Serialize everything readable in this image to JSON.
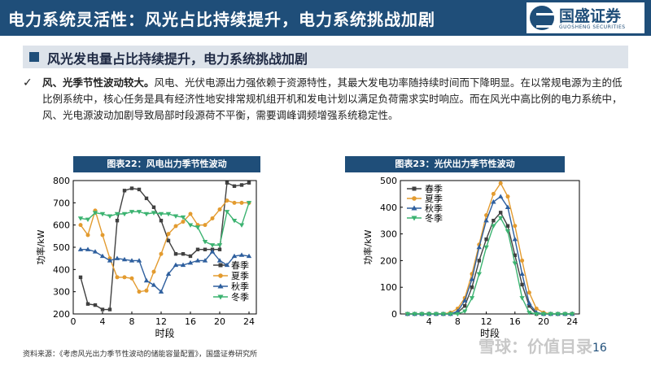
{
  "header": {
    "title": "电力系统灵活性：风光占比持续提升，电力系统挑战加剧",
    "logo_cn": "国盛证券",
    "logo_en": "GUOSHENG SECURITIES"
  },
  "subheading": "风光发电量占比持续提升，电力系统挑战加剧",
  "bullet": {
    "lead": "风、光季节性波动较大。",
    "text": "风电、光伏电源出力强依赖于资源特性，其最大发电功率随持续时间而下降明显。在以常规电源为主的低比例系统中，核心任务是具有经济性地安排常规机组开机和发电计划以满足负荷需求实时响应。而在风光中高比例的电力系统中，风、光电源波动加剧导致局部时段源荷不平衡，需要调峰调频增强系统稳定性。"
  },
  "chart_data": [
    {
      "caption": "图表22：风电出力季节性波动",
      "type": "line",
      "xlabel": "时段",
      "ylabel": "功率/kW",
      "xlim": [
        0,
        25
      ],
      "ylim": [
        200,
        800
      ],
      "xticks": [
        0,
        4,
        8,
        12,
        16,
        20,
        24
      ],
      "yticks": [
        200,
        300,
        400,
        500,
        600,
        700,
        800
      ],
      "legend_position": "bottom-right",
      "x": [
        1,
        2,
        3,
        4,
        5,
        6,
        7,
        8,
        9,
        10,
        11,
        12,
        13,
        14,
        15,
        16,
        17,
        18,
        19,
        20,
        21,
        22,
        23,
        24
      ],
      "series": [
        {
          "name": "春季",
          "marker": "square",
          "color": "#404040",
          "values": [
            365,
            245,
            240,
            220,
            220,
            620,
            755,
            765,
            760,
            720,
            680,
            620,
            530,
            470,
            470,
            460,
            490,
            490,
            490,
            490,
            790,
            775,
            780,
            790
          ]
        },
        {
          "name": "夏季",
          "marker": "circle",
          "color": "#e39b2f",
          "values": [
            600,
            555,
            665,
            555,
            450,
            365,
            365,
            360,
            300,
            305,
            390,
            470,
            560,
            595,
            615,
            650,
            600,
            600,
            630,
            670,
            710,
            700,
            700,
            700
          ]
        },
        {
          "name": "秋季",
          "marker": "triangle",
          "color": "#2e5f9e",
          "values": [
            490,
            490,
            480,
            460,
            440,
            450,
            445,
            440,
            440,
            350,
            330,
            300,
            380,
            420,
            420,
            430,
            440,
            440,
            480,
            440,
            420,
            460,
            465,
            460
          ]
        },
        {
          "name": "冬季",
          "marker": "tri-down",
          "color": "#3cb371",
          "values": [
            630,
            625,
            655,
            650,
            640,
            650,
            650,
            660,
            660,
            650,
            655,
            650,
            650,
            640,
            635,
            600,
            590,
            525,
            510,
            510,
            660,
            620,
            600,
            700
          ]
        }
      ]
    },
    {
      "caption": "图表23：光伏出力季节性波动",
      "type": "line",
      "xlabel": "时段",
      "ylabel": "功率/kW",
      "xlim": [
        0,
        25
      ],
      "ylim": [
        0,
        500
      ],
      "xticks": [
        4,
        8,
        12,
        16,
        20,
        24
      ],
      "yticks": [
        0,
        100,
        200,
        300,
        400,
        500
      ],
      "legend_position": "top-left",
      "x": [
        1,
        2,
        3,
        4,
        5,
        6,
        7,
        8,
        9,
        10,
        11,
        12,
        13,
        14,
        15,
        16,
        17,
        18,
        19,
        20,
        21,
        22,
        23,
        24
      ],
      "series": [
        {
          "name": "春季",
          "marker": "square",
          "color": "#404040",
          "values": [
            0,
            0,
            0,
            0,
            0,
            0,
            0,
            5,
            30,
            100,
            200,
            280,
            350,
            380,
            330,
            220,
            110,
            30,
            0,
            0,
            0,
            0,
            0,
            0
          ]
        },
        {
          "name": "夏季",
          "marker": "circle",
          "color": "#e39b2f",
          "values": [
            0,
            0,
            0,
            0,
            0,
            0,
            5,
            20,
            60,
            150,
            260,
            370,
            450,
            490,
            440,
            330,
            200,
            80,
            20,
            5,
            0,
            0,
            0,
            0
          ]
        },
        {
          "name": "秋季",
          "marker": "triangle",
          "color": "#2e5f9e",
          "values": [
            0,
            0,
            0,
            0,
            0,
            0,
            0,
            10,
            50,
            130,
            250,
            350,
            420,
            440,
            400,
            280,
            150,
            40,
            5,
            0,
            0,
            0,
            0,
            0
          ]
        },
        {
          "name": "冬季",
          "marker": "tri-down",
          "color": "#3cb371",
          "values": [
            0,
            0,
            0,
            0,
            0,
            0,
            0,
            0,
            10,
            60,
            150,
            250,
            330,
            360,
            310,
            190,
            60,
            5,
            0,
            0,
            0,
            0,
            0,
            0
          ]
        }
      ]
    }
  ],
  "source": "资料来源：《考虑风光出力季节性波动的储能容量配置》，国盛证券研究所",
  "watermark": "雪球：价值目录",
  "page_number": "16"
}
